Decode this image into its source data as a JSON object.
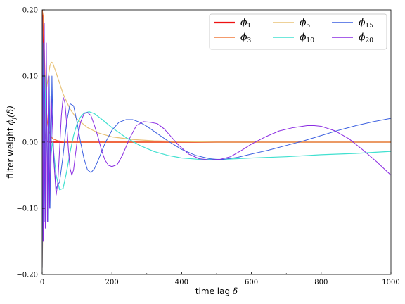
{
  "chart_data": {
    "type": "line",
    "xlabel": "time lag",
    "xlabel_symbol": "δ",
    "ylabel": "filter weight",
    "ylabel_symbol": "ϕ",
    "ylabel_sub": "j",
    "ylabel_arg": "(δ)",
    "xlim": [
      0,
      1000
    ],
    "ylim": [
      -0.2,
      0.2
    ],
    "x_ticks": [
      0,
      200,
      400,
      600,
      800,
      1000
    ],
    "x_tick_labels": [
      "0",
      "200",
      "400",
      "600",
      "800",
      "1000"
    ],
    "y_ticks": [
      -0.2,
      -0.1,
      0.0,
      0.1,
      0.2
    ],
    "y_tick_labels": [
      "−0.20",
      "−0.10",
      "0.00",
      "0.10",
      "0.20"
    ],
    "grid": false,
    "legend_position": "top-right",
    "legend_columns": 3,
    "series": [
      {
        "name": "ϕ",
        "sub": "1",
        "color": "#ee1111",
        "width": 1.8,
        "x": [
          0,
          2,
          4,
          6,
          8,
          10,
          14,
          20,
          40,
          100,
          1000
        ],
        "y": [
          0.2,
          0.16,
          0.07,
          0.03,
          0.012,
          0.005,
          0.001,
          0.0,
          0.0,
          0.0,
          0.0
        ]
      },
      {
        "name": "ϕ",
        "sub": "3",
        "color": "#f07a3c",
        "width": 1.2,
        "x": [
          0,
          3,
          6,
          8,
          10,
          12,
          15,
          20,
          30,
          45,
          70,
          100,
          200,
          1000
        ],
        "y": [
          0.2,
          0.19,
          0.14,
          0.1,
          0.07,
          0.05,
          0.03,
          0.015,
          0.005,
          0.002,
          0.0,
          0.0,
          0.0,
          0.0
        ]
      },
      {
        "name": "ϕ",
        "sub": "5",
        "color": "#e8c277",
        "width": 1.2,
        "x": [
          0,
          3,
          6,
          9,
          12,
          15,
          18,
          22,
          26,
          30,
          40,
          60,
          80,
          100,
          130,
          160,
          200,
          260,
          320,
          400,
          500,
          1000
        ],
        "y": [
          -0.19,
          -0.1,
          0.0,
          0.05,
          0.08,
          0.09,
          0.1,
          0.115,
          0.121,
          0.12,
          0.105,
          0.073,
          0.05,
          0.035,
          0.022,
          0.014,
          0.008,
          0.004,
          0.002,
          0.001,
          0.0,
          0.0
        ]
      },
      {
        "name": "ϕ",
        "sub": "10",
        "color": "#40e0d0",
        "width": 1.2,
        "x": [
          0,
          5,
          10,
          15,
          20,
          25,
          30,
          40,
          50,
          60,
          70,
          80,
          90,
          100,
          110,
          120,
          135,
          150,
          170,
          200,
          240,
          280,
          320,
          360,
          400,
          450,
          500,
          520,
          560,
          600,
          700,
          800,
          900,
          1000
        ],
        "y": [
          0.19,
          -0.1,
          0.1,
          -0.05,
          0.05,
          -0.02,
          0.0,
          -0.05,
          -0.072,
          -0.07,
          -0.045,
          -0.015,
          0.01,
          0.028,
          0.038,
          0.044,
          0.046,
          0.043,
          0.035,
          0.022,
          0.007,
          -0.005,
          -0.014,
          -0.02,
          -0.024,
          -0.026,
          -0.026,
          -0.026,
          -0.025,
          -0.024,
          -0.022,
          -0.019,
          -0.017,
          -0.014
        ]
      },
      {
        "name": "ϕ",
        "sub": "15",
        "color": "#3a5fe0",
        "width": 1.0,
        "x": [
          0,
          4,
          8,
          12,
          16,
          20,
          24,
          28,
          32,
          40,
          50,
          60,
          70,
          80,
          90,
          100,
          110,
          120,
          130,
          140,
          150,
          160,
          180,
          200,
          220,
          240,
          260,
          280,
          300,
          330,
          360,
          400,
          440,
          480,
          500,
          520,
          560,
          600,
          650,
          700,
          750,
          800,
          850,
          900,
          950,
          1000
        ],
        "y": [
          -0.19,
          0.15,
          -0.12,
          0.1,
          -0.12,
          0.1,
          -0.1,
          0.1,
          -0.02,
          -0.07,
          -0.06,
          -0.02,
          0.03,
          0.058,
          0.055,
          0.03,
          0.0,
          -0.025,
          -0.042,
          -0.046,
          -0.04,
          -0.028,
          -0.002,
          0.018,
          0.03,
          0.034,
          0.034,
          0.03,
          0.024,
          0.013,
          0.002,
          -0.011,
          -0.02,
          -0.025,
          -0.026,
          -0.026,
          -0.023,
          -0.018,
          -0.012,
          -0.005,
          0.002,
          0.01,
          0.018,
          0.025,
          0.031,
          0.036
        ]
      },
      {
        "name": "ϕ",
        "sub": "20",
        "color": "#8a2be2",
        "width": 1.0,
        "x": [
          0,
          3,
          6,
          9,
          12,
          15,
          18,
          21,
          25,
          30,
          35,
          40,
          45,
          50,
          55,
          60,
          65,
          70,
          75,
          80,
          85,
          90,
          95,
          100,
          110,
          120,
          130,
          140,
          150,
          160,
          170,
          180,
          190,
          200,
          215,
          230,
          250,
          270,
          290,
          310,
          330,
          350,
          370,
          390,
          420,
          450,
          480,
          510,
          540,
          570,
          600,
          640,
          680,
          720,
          760,
          780,
          800,
          840,
          880,
          920,
          960,
          1000
        ],
        "y": [
          0.19,
          -0.15,
          0.18,
          -0.13,
          0.15,
          -0.12,
          0.1,
          -0.1,
          0.07,
          0.02,
          -0.04,
          -0.08,
          -0.06,
          -0.01,
          0.04,
          0.068,
          0.06,
          0.03,
          -0.01,
          -0.04,
          -0.05,
          -0.042,
          -0.02,
          0.0,
          0.03,
          0.043,
          0.045,
          0.04,
          0.025,
          0.008,
          -0.012,
          -0.027,
          -0.035,
          -0.037,
          -0.034,
          -0.02,
          0.005,
          0.025,
          0.031,
          0.03,
          0.028,
          0.02,
          0.008,
          -0.004,
          -0.018,
          -0.025,
          -0.027,
          -0.026,
          -0.022,
          -0.013,
          -0.003,
          0.008,
          0.017,
          0.022,
          0.025,
          0.025,
          0.024,
          0.017,
          0.005,
          -0.012,
          -0.03,
          -0.05
        ]
      }
    ]
  }
}
